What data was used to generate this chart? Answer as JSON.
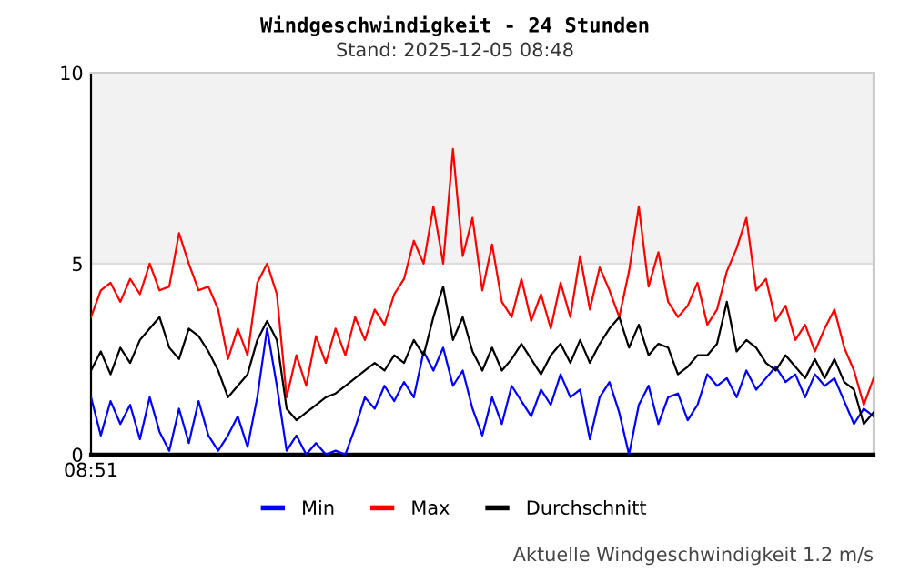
{
  "chart_data": {
    "type": "line",
    "title": "Windgeschwindigkeit - 24 Stunden",
    "subtitle": "Stand: 2025-12-05 08:48",
    "categories": [
      "08:51",
      null,
      null,
      null,
      null,
      null,
      null,
      null,
      null,
      null,
      null,
      null,
      null,
      null,
      null,
      null,
      null,
      null,
      null,
      null,
      null,
      null,
      null,
      null,
      null,
      null,
      null,
      null,
      null,
      null,
      null,
      null,
      null,
      null,
      null,
      null,
      null,
      null,
      null,
      null,
      null,
      null,
      null,
      null,
      null,
      null,
      null,
      null,
      null,
      null,
      null,
      null,
      null,
      null,
      null,
      null,
      null,
      null,
      null,
      null,
      null,
      null,
      null,
      null,
      null,
      null,
      null,
      null,
      null,
      null,
      null,
      null,
      null,
      null,
      null,
      null,
      null,
      null,
      null,
      null,
      null
    ],
    "series": [
      {
        "name": "Min",
        "color": "#0000ff",
        "values": [
          1.5,
          0.5,
          1.4,
          0.8,
          1.3,
          0.4,
          1.5,
          0.6,
          0.1,
          1.2,
          0.3,
          1.4,
          0.5,
          0.1,
          0.5,
          1.0,
          0.2,
          1.5,
          3.3,
          1.8,
          0.1,
          0.5,
          0.0,
          0.3,
          0.0,
          0.1,
          0.0,
          0.7,
          1.5,
          1.2,
          1.8,
          1.4,
          1.9,
          1.5,
          2.7,
          2.2,
          2.8,
          1.8,
          2.2,
          1.2,
          0.5,
          1.5,
          0.8,
          1.8,
          1.4,
          1.0,
          1.7,
          1.3,
          2.1,
          1.5,
          1.7,
          0.4,
          1.5,
          1.9,
          1.1,
          0.0,
          1.3,
          1.8,
          0.8,
          1.5,
          1.6,
          0.9,
          1.3,
          2.1,
          1.8,
          2.0,
          1.5,
          2.2,
          1.7,
          2.0,
          2.3,
          1.9,
          2.1,
          1.5,
          2.1,
          1.8,
          2.0,
          1.4,
          0.8,
          1.2,
          1.0
        ]
      },
      {
        "name": "Max",
        "color": "#ff0000",
        "values": [
          3.6,
          4.3,
          4.5,
          4.0,
          4.6,
          4.2,
          5.0,
          4.3,
          4.4,
          5.8,
          5.0,
          4.3,
          4.4,
          3.8,
          2.5,
          3.3,
          2.6,
          4.5,
          5.0,
          4.2,
          1.5,
          2.6,
          1.8,
          3.1,
          2.4,
          3.3,
          2.6,
          3.6,
          3.0,
          3.8,
          3.4,
          4.2,
          4.6,
          5.6,
          5.0,
          6.5,
          5.0,
          8.0,
          5.2,
          6.2,
          4.3,
          5.5,
          4.0,
          3.6,
          4.6,
          3.5,
          4.2,
          3.3,
          4.5,
          3.6,
          5.2,
          3.8,
          4.9,
          4.3,
          3.6,
          4.8,
          6.5,
          4.4,
          5.3,
          4.0,
          3.6,
          3.9,
          4.5,
          3.4,
          3.8,
          4.8,
          5.4,
          6.2,
          4.3,
          4.6,
          3.5,
          3.9,
          3.0,
          3.4,
          2.7,
          3.3,
          3.8,
          2.8,
          2.2,
          1.3,
          2.0
        ]
      },
      {
        "name": "Durchschnitt",
        "color": "#000000",
        "values": [
          2.2,
          2.7,
          2.1,
          2.8,
          2.4,
          3.0,
          3.3,
          3.6,
          2.8,
          2.5,
          3.3,
          3.1,
          2.7,
          2.2,
          1.5,
          1.8,
          2.1,
          3.0,
          3.5,
          3.0,
          1.2,
          0.9,
          1.1,
          1.3,
          1.5,
          1.6,
          1.8,
          2.0,
          2.2,
          2.4,
          2.2,
          2.6,
          2.4,
          3.0,
          2.6,
          3.6,
          4.4,
          3.0,
          3.6,
          2.7,
          2.2,
          2.8,
          2.2,
          2.5,
          2.9,
          2.5,
          2.1,
          2.6,
          2.9,
          2.4,
          3.0,
          2.4,
          2.9,
          3.3,
          3.6,
          2.8,
          3.4,
          2.6,
          2.9,
          2.8,
          2.1,
          2.3,
          2.6,
          2.6,
          2.9,
          4.0,
          2.7,
          3.0,
          2.8,
          2.4,
          2.2,
          2.6,
          2.3,
          2.0,
          2.5,
          2.0,
          2.5,
          1.9,
          1.7,
          0.8,
          1.1
        ]
      }
    ],
    "ylim": [
      0,
      10
    ],
    "yticks": [
      0,
      5,
      10
    ],
    "bands": [
      {
        "axis": "y",
        "from": 5,
        "to": 10,
        "label": null,
        "color": "#f2f2f2"
      }
    ],
    "legend": "bottom",
    "line_style": "solid",
    "marker": "none",
    "annotations": [
      "Aktuelle Windgeschwindigkeit 1.2 m/s"
    ]
  }
}
